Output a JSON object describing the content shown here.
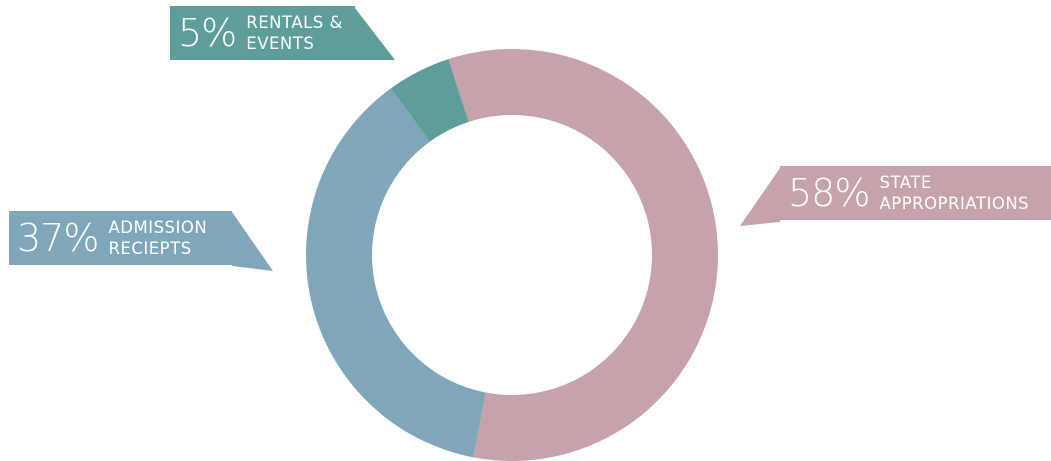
{
  "chart_data": {
    "type": "pie",
    "categories": [
      "STATE APPROPRIATIONS",
      "ADMISSION RECIEPTS",
      "RENTALS & EVENTS"
    ],
    "values": [
      58,
      37,
      5
    ],
    "value_labels": [
      "58%",
      "37%",
      "5%"
    ],
    "colors": [
      "#c6a2aa",
      "#7fa7b9",
      "#5e9e9a"
    ],
    "donut": true
  }
}
